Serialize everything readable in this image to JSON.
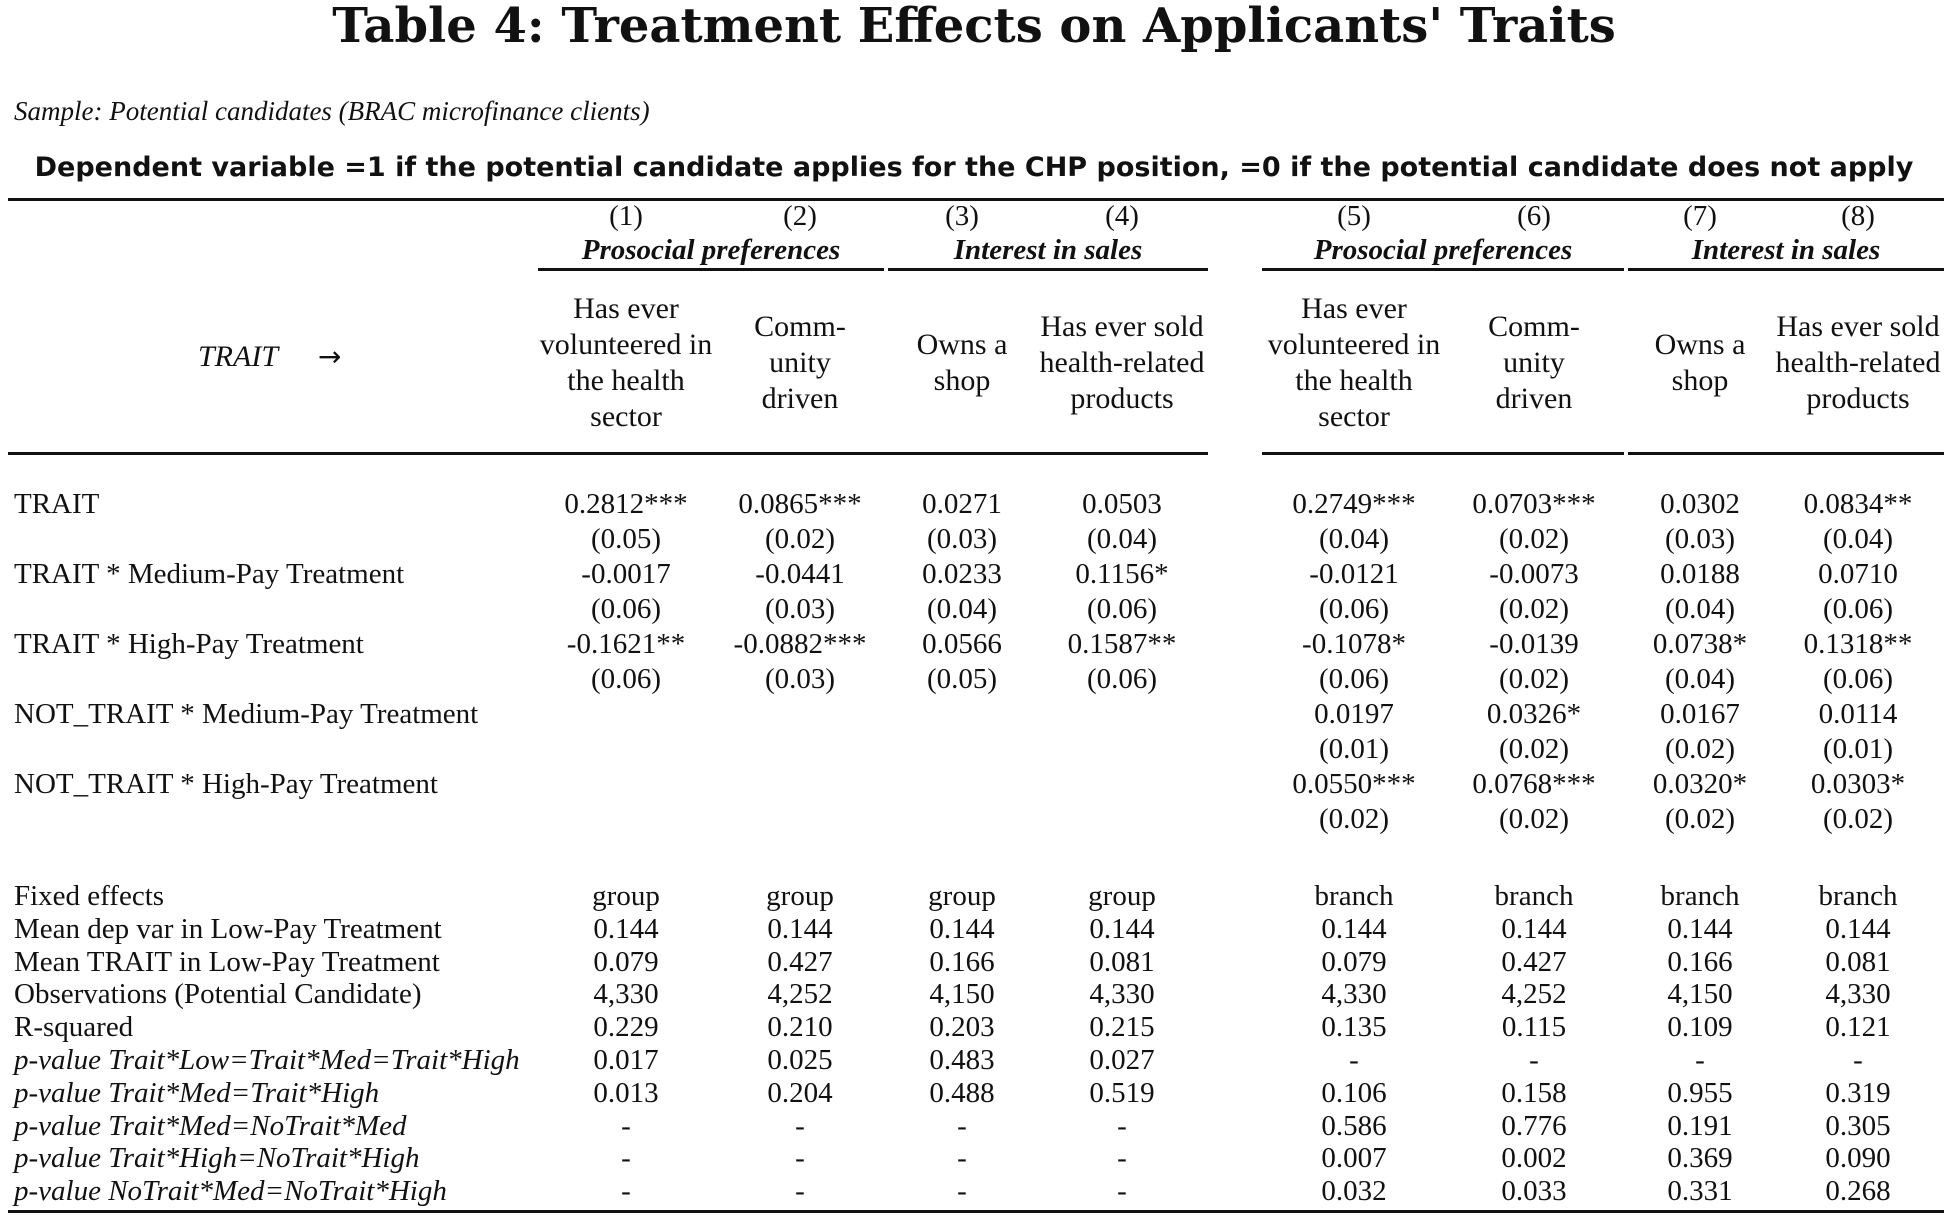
{
  "title": "Table 4: Treatment Effects on Applicants' Traits",
  "sample": "Sample: Potential candidates (BRAC microfinance clients)",
  "dependent_variable": "Dependent variable =1 if the potential candidate applies for the CHP position,  =0 if the potential candidate does not apply",
  "trait_label": "TRAIT",
  "trait_arrow": "→",
  "column_numbers": [
    "(1)",
    "(2)",
    "(3)",
    "(4)",
    "(5)",
    "(6)",
    "(7)",
    "(8)"
  ],
  "column_groups": [
    "Prosocial preferences",
    "Interest in sales",
    "Prosocial preferences",
    "Interest in sales"
  ],
  "column_headers": [
    "Has ever volunteered in the health sector",
    "Comm-unity driven",
    "Owns a shop",
    "Has ever sold health-related products",
    "Has ever volunteered in the health sector",
    "Comm-unity driven",
    "Owns a shop",
    "Has ever sold health-related products"
  ],
  "coef_rows": [
    {
      "label": "TRAIT",
      "coef": [
        "0.2812***",
        "0.0865***",
        "0.0271",
        "0.0503",
        "0.2749***",
        "0.0703***",
        "0.0302",
        "0.0834**"
      ],
      "se": [
        "(0.05)",
        "(0.02)",
        "(0.03)",
        "(0.04)",
        "(0.04)",
        "(0.02)",
        "(0.03)",
        "(0.04)"
      ]
    },
    {
      "label": "TRAIT * Medium-Pay Treatment",
      "coef": [
        "-0.0017",
        "-0.0441",
        "0.0233",
        "0.1156*",
        "-0.0121",
        "-0.0073",
        "0.0188",
        "0.0710"
      ],
      "se": [
        "(0.06)",
        "(0.03)",
        "(0.04)",
        "(0.06)",
        "(0.06)",
        "(0.02)",
        "(0.04)",
        "(0.06)"
      ]
    },
    {
      "label": "TRAIT * High-Pay Treatment",
      "coef": [
        "-0.1621**",
        "-0.0882***",
        "0.0566",
        "0.1587**",
        "-0.1078*",
        "-0.0139",
        "0.0738*",
        "0.1318**"
      ],
      "se": [
        "(0.06)",
        "(0.03)",
        "(0.05)",
        "(0.06)",
        "(0.06)",
        "(0.02)",
        "(0.04)",
        "(0.06)"
      ]
    },
    {
      "label": "NOT_TRAIT * Medium-Pay Treatment",
      "coef": [
        "",
        "",
        "",
        "",
        "0.0197",
        "0.0326*",
        "0.0167",
        "0.0114"
      ],
      "se": [
        "",
        "",
        "",
        "",
        "(0.01)",
        "(0.02)",
        "(0.02)",
        "(0.01)"
      ]
    },
    {
      "label": "NOT_TRAIT * High-Pay Treatment",
      "coef": [
        "",
        "",
        "",
        "",
        "0.0550***",
        "0.0768***",
        "0.0320*",
        "0.0303*"
      ],
      "se": [
        "",
        "",
        "",
        "",
        "(0.02)",
        "(0.02)",
        "(0.02)",
        "(0.02)"
      ]
    }
  ],
  "stat_rows": [
    {
      "label": "Fixed effects",
      "italic": false,
      "values": [
        "group",
        "group",
        "group",
        "group",
        "branch",
        "branch",
        "branch",
        "branch"
      ]
    },
    {
      "label": "Mean dep var  in Low-Pay Treatment",
      "italic": false,
      "values": [
        "0.144",
        "0.144",
        "0.144",
        "0.144",
        "0.144",
        "0.144",
        "0.144",
        "0.144"
      ]
    },
    {
      "label": "Mean TRAIT in Low-Pay Treatment",
      "italic": false,
      "values": [
        "0.079",
        "0.427",
        "0.166",
        "0.081",
        "0.079",
        "0.427",
        "0.166",
        "0.081"
      ]
    },
    {
      "label": "Observations (Potential Candidate)",
      "italic": false,
      "values": [
        "4,330",
        "4,252",
        "4,150",
        "4,330",
        "4,330",
        "4,252",
        "4,150",
        "4,330"
      ]
    },
    {
      "label": "R-squared",
      "italic": false,
      "values": [
        "0.229",
        "0.210",
        "0.203",
        "0.215",
        "0.135",
        "0.115",
        "0.109",
        "0.121"
      ]
    },
    {
      "label": "p-value Trait*Low=Trait*Med=Trait*High",
      "italic": true,
      "values": [
        "0.017",
        "0.025",
        "0.483",
        "0.027",
        "-",
        "-",
        "-",
        "-"
      ]
    },
    {
      "label": "p-value Trait*Med=Trait*High",
      "italic": true,
      "values": [
        "0.013",
        "0.204",
        "0.488",
        "0.519",
        "0.106",
        "0.158",
        "0.955",
        "0.319"
      ]
    },
    {
      "label": "p-value Trait*Med=NoTrait*Med",
      "italic": true,
      "values": [
        "-",
        "-",
        "-",
        "-",
        "0.586",
        "0.776",
        "0.191",
        "0.305"
      ]
    },
    {
      "label": "p-value Trait*High=NoTrait*High",
      "italic": true,
      "values": [
        "-",
        "-",
        "-",
        "-",
        "0.007",
        "0.002",
        "0.369",
        "0.090"
      ]
    },
    {
      "label": "p-value NoTrait*Med=NoTrait*High",
      "italic": true,
      "values": [
        "-",
        "-",
        "-",
        "-",
        "0.032",
        "0.033",
        "0.331",
        "0.268"
      ]
    }
  ]
}
